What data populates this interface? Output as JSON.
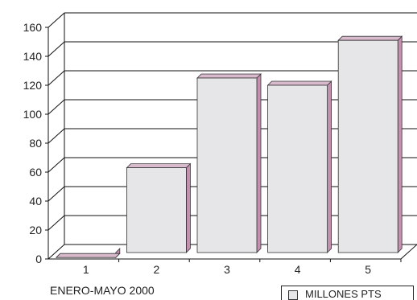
{
  "chart_data": {
    "type": "bar",
    "categories": [
      "1",
      "2",
      "3",
      "4",
      "5"
    ],
    "series": [
      {
        "name": "MILLONES PTS",
        "values": [
          1,
          63,
          125,
          120,
          151
        ]
      }
    ],
    "y_ticks": [
      "0",
      "20",
      "40",
      "60",
      "80",
      "100",
      "120",
      "140",
      "160"
    ],
    "ylim": [
      0,
      160
    ],
    "xlabel": "ENERO-MAYO 2000",
    "grid": true,
    "legend_position": "bottom-right",
    "style": "3d-bar",
    "colors": {
      "bar_front": "#e6e6e8",
      "bar_side": "#c58fb0",
      "bar_top": "#d9b9cc",
      "grid": "#111111"
    }
  }
}
